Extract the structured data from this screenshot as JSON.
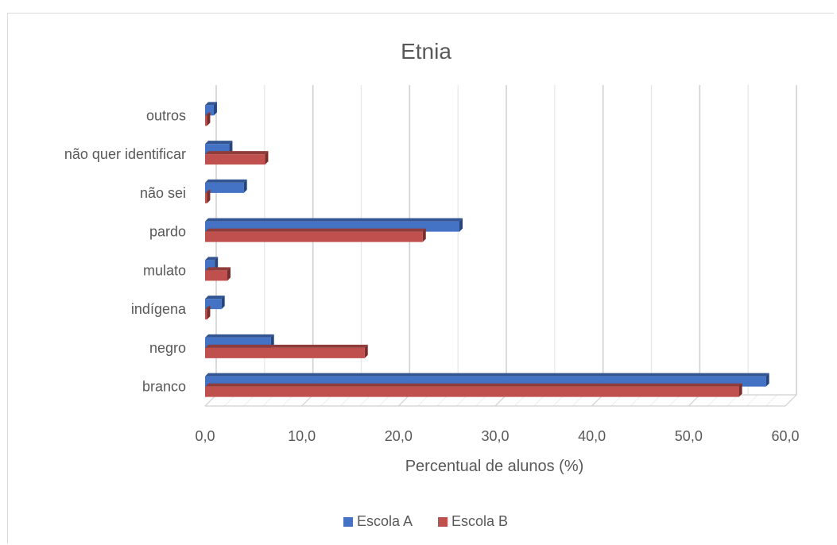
{
  "chart_data": {
    "type": "bar",
    "orientation": "horizontal",
    "title": "Etnia",
    "xlabel": "Percentual de alunos (%)",
    "ylabel": "",
    "xlim": [
      0,
      60
    ],
    "x_ticks": [
      "0,0",
      "10,0",
      "20,0",
      "30,0",
      "40,0",
      "50,0",
      "60,0"
    ],
    "grid": true,
    "legend_position": "bottom",
    "categories": [
      "branco",
      "negro",
      "indígena",
      "mulato",
      "pardo",
      "não sei",
      "não quer identificar",
      "outros"
    ],
    "series": [
      {
        "name": "Escola A",
        "color": "#4472c4",
        "values": [
          58.0,
          6.8,
          1.7,
          1.0,
          26.3,
          4.0,
          2.5,
          0.9
        ]
      },
      {
        "name": "Escola B",
        "color": "#c0504d",
        "values": [
          55.2,
          16.5,
          0.2,
          2.3,
          22.5,
          0.2,
          6.2,
          0.2
        ]
      }
    ]
  }
}
